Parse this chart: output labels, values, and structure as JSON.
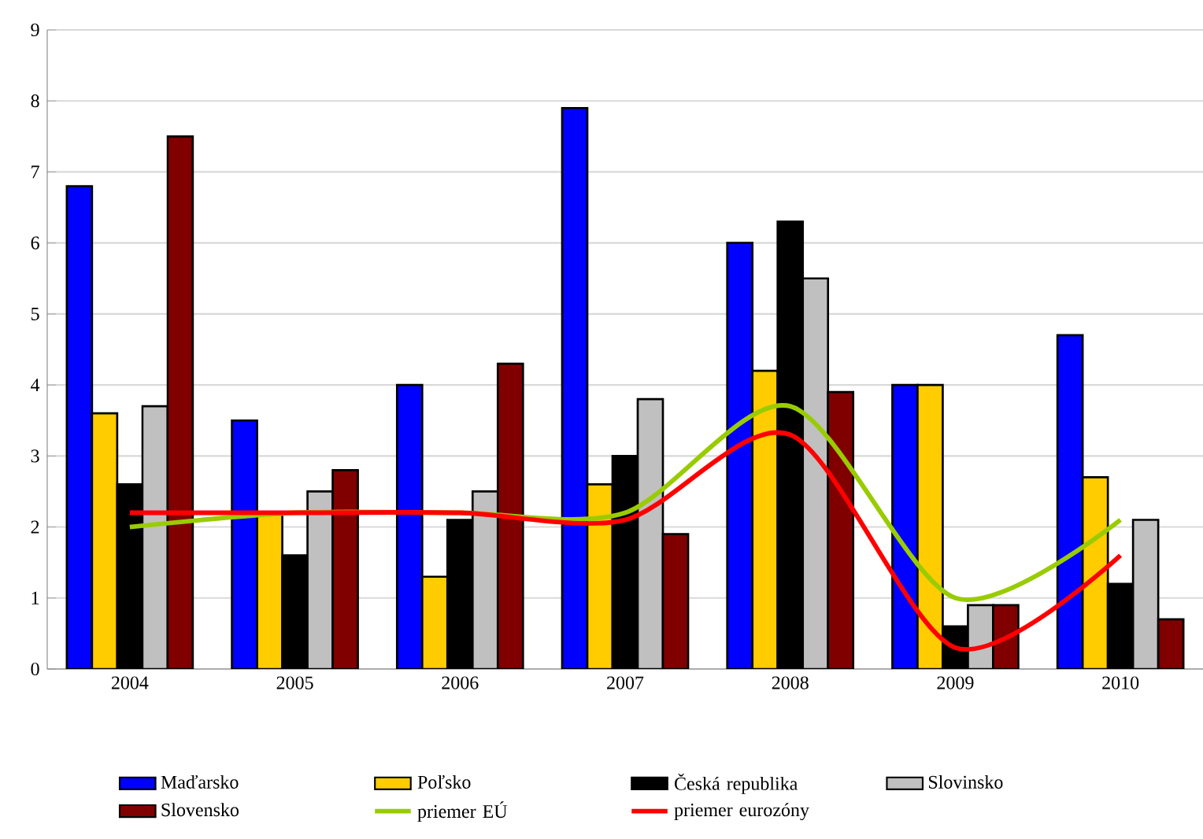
{
  "chart_data": {
    "type": "bar",
    "categories": [
      "2004",
      "2005",
      "2006",
      "2007",
      "2008",
      "2009",
      "2010"
    ],
    "series": [
      {
        "name": "Maďarsko",
        "color": "#0000ff",
        "values": [
          6.8,
          3.5,
          4.0,
          7.9,
          6.0,
          4.0,
          4.7
        ]
      },
      {
        "name": "Poľsko",
        "color": "#ffcc00",
        "values": [
          3.6,
          2.2,
          1.3,
          2.6,
          4.2,
          4.0,
          2.7
        ]
      },
      {
        "name": "Česká republika",
        "color": "#000000",
        "values": [
          2.6,
          1.6,
          2.1,
          3.0,
          6.3,
          0.6,
          1.2
        ]
      },
      {
        "name": "Slovinsko",
        "color": "#c0c0c0",
        "values": [
          3.7,
          2.5,
          2.5,
          3.8,
          5.5,
          0.9,
          2.1
        ]
      },
      {
        "name": "Slovensko",
        "color": "#800000",
        "values": [
          7.5,
          2.8,
          4.3,
          1.9,
          3.9,
          0.9,
          0.7
        ]
      },
      {
        "name": "priemer EÚ",
        "color": "#99cc00",
        "type": "line",
        "values": [
          2.0,
          2.2,
          2.2,
          2.2,
          3.7,
          1.0,
          2.1
        ]
      },
      {
        "name": "priemer eurozóny",
        "color": "#ff0000",
        "type": "line",
        "values": [
          2.2,
          2.2,
          2.2,
          2.1,
          3.3,
          0.3,
          1.6
        ]
      }
    ],
    "ylim": [
      0,
      9
    ],
    "yticks": [
      0,
      1,
      2,
      3,
      4,
      5,
      6,
      7,
      8,
      9
    ],
    "grid": "y",
    "legend": "bottom",
    "marker": "none"
  }
}
